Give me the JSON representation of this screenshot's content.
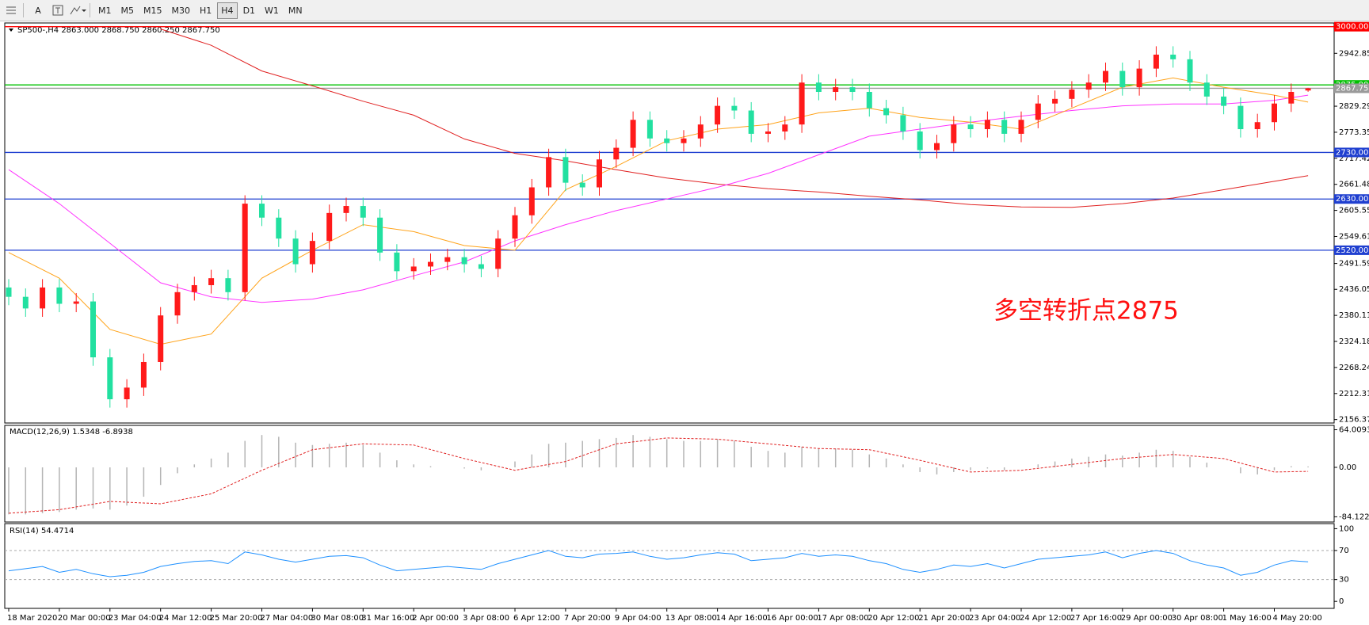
{
  "toolbar": {
    "text_tool": "A",
    "timeframes": [
      "M1",
      "M5",
      "M15",
      "M30",
      "H1",
      "H4",
      "D1",
      "W1",
      "MN"
    ]
  },
  "chart_data": [
    {
      "type": "candlestick",
      "title": "SP500-,H4  2863.000 2868.750 2860.250 2867.750",
      "annotation": "多空转折点2875",
      "categories": [
        "18 Mar 2020",
        null,
        null,
        "20 Mar 00:00",
        null,
        null,
        "23 Mar 04:00",
        null,
        null,
        "24 Mar 12:00",
        null,
        null,
        "25 Mar 20:00",
        null,
        null,
        "27 Mar 04:00",
        null,
        null,
        "30 Mar 08:00",
        null,
        null,
        "31 Mar 16:00",
        null,
        null,
        "2 Apr 00:00",
        null,
        null,
        "3 Apr 08:00",
        null,
        null,
        "6 Apr 12:00",
        null,
        null,
        "7 Apr 20:00",
        null,
        null,
        "9 Apr 04:00",
        null,
        null,
        "13 Apr 08:00",
        null,
        null,
        "14 Apr 16:00",
        null,
        null,
        "16 Apr 00:00",
        null,
        null,
        "17 Apr 08:00",
        null,
        null,
        "20 Apr 12:00",
        null,
        null,
        "21 Apr 20:00",
        null,
        null,
        "23 Apr 04:00",
        null,
        null,
        "24 Apr 12:00",
        null,
        null,
        "27 Apr 16:00",
        null,
        null,
        "29 Apr 00:00",
        null,
        null,
        "30 Apr 08:00",
        null,
        null,
        "1 May 16:00",
        null,
        null,
        "4 May 20:00",
        null,
        null
      ],
      "open": [
        2440,
        2420,
        2395,
        2440,
        2405,
        2410,
        2290,
        2200,
        2225,
        2280,
        2380,
        2430,
        2445,
        2460,
        2430,
        2620,
        2590,
        2545,
        2490,
        2540,
        2600,
        2615,
        2590,
        2515,
        2475,
        2485,
        2495,
        2505,
        2490,
        2480,
        2545,
        2595,
        2655,
        2720,
        2665,
        2655,
        2715,
        2740,
        2800,
        2760,
        2750,
        2760,
        2790,
        2830,
        2820,
        2770,
        2775,
        2790,
        2880,
        2860,
        2870,
        2860,
        2825,
        2810,
        2775,
        2735,
        2750,
        2790,
        2780,
        2800,
        2770,
        2800,
        2835,
        2845,
        2865,
        2880,
        2905,
        2870,
        2910,
        2940,
        2930,
        2880,
        2850,
        2830,
        2780,
        2795,
        2835,
        2863
      ],
      "high": [
        2458,
        2438,
        2458,
        2458,
        2428,
        2428,
        2308,
        2243,
        2298,
        2398,
        2448,
        2463,
        2478,
        2478,
        2638,
        2638,
        2608,
        2563,
        2558,
        2618,
        2633,
        2633,
        2608,
        2533,
        2503,
        2513,
        2523,
        2523,
        2508,
        2563,
        2613,
        2673,
        2738,
        2738,
        2683,
        2733,
        2758,
        2818,
        2818,
        2778,
        2778,
        2808,
        2848,
        2848,
        2838,
        2793,
        2808,
        2898,
        2898,
        2888,
        2888,
        2878,
        2843,
        2828,
        2793,
        2768,
        2808,
        2808,
        2818,
        2818,
        2818,
        2853,
        2863,
        2883,
        2898,
        2923,
        2923,
        2928,
        2958,
        2958,
        2948,
        2898,
        2868,
        2848,
        2813,
        2853,
        2878,
        2868.75
      ],
      "low": [
        2402,
        2377,
        2377,
        2387,
        2387,
        2272,
        2182,
        2182,
        2207,
        2262,
        2362,
        2412,
        2427,
        2412,
        2412,
        2572,
        2527,
        2472,
        2472,
        2522,
        2582,
        2572,
        2497,
        2457,
        2457,
        2467,
        2477,
        2472,
        2462,
        2462,
        2527,
        2577,
        2637,
        2647,
        2637,
        2637,
        2697,
        2722,
        2742,
        2732,
        2732,
        2742,
        2772,
        2802,
        2752,
        2752,
        2757,
        2772,
        2842,
        2842,
        2842,
        2807,
        2792,
        2757,
        2717,
        2717,
        2732,
        2762,
        2762,
        2752,
        2752,
        2782,
        2817,
        2827,
        2847,
        2862,
        2852,
        2852,
        2892,
        2912,
        2862,
        2832,
        2812,
        2762,
        2762,
        2777,
        2817,
        2860.25
      ],
      "close": [
        2420,
        2395,
        2440,
        2405,
        2410,
        2290,
        2200,
        2225,
        2280,
        2380,
        2430,
        2445,
        2460,
        2430,
        2620,
        2590,
        2545,
        2490,
        2540,
        2600,
        2615,
        2590,
        2515,
        2475,
        2485,
        2495,
        2505,
        2490,
        2480,
        2545,
        2595,
        2655,
        2720,
        2665,
        2655,
        2715,
        2740,
        2800,
        2760,
        2750,
        2760,
        2790,
        2830,
        2820,
        2770,
        2775,
        2790,
        2880,
        2860,
        2870,
        2860,
        2825,
        2810,
        2775,
        2735,
        2750,
        2790,
        2780,
        2800,
        2770,
        2800,
        2835,
        2845,
        2865,
        2880,
        2905,
        2870,
        2910,
        2940,
        2930,
        2880,
        2850,
        2830,
        2780,
        2795,
        2835,
        2860,
        2867.75
      ],
      "up_color": "#ff1a1a",
      "down_color": "#22e0a0",
      "ylim": [
        2149,
        3008
      ],
      "yticks": [
        2942.855,
        {
          "value": 2829.29,
          "label": "2829.290"
        },
        2773.355,
        {
          "value": 2717.42,
          "label": "2717.420"
        },
        2661.481,
        2605.555,
        2549.615,
        2491.595,
        {
          "value": 2436.05,
          "label": "2436.050"
        },
        2380.115,
        {
          "value": 2324.18,
          "label": "2324.180"
        },
        2268.245,
        {
          "value": 2212.31,
          "label": "2212.310"
        },
        2156.375
      ],
      "lines": [
        {
          "color": "#e02020",
          "x": [
            9,
            12,
            15,
            18,
            21,
            24,
            27,
            30,
            33,
            36,
            39,
            42,
            45,
            48,
            51,
            54,
            57,
            60,
            63,
            66,
            69,
            72,
            75,
            77
          ],
          "values": [
            2995,
            2960,
            2905,
            2873,
            2840,
            2810,
            2759,
            2728,
            2712,
            2693,
            2675,
            2662,
            2652,
            2645,
            2636,
            2628,
            2618,
            2613,
            2612,
            2620,
            2632,
            2650,
            2668,
            2680
          ]
        },
        {
          "color": "#ff33ff",
          "x": [
            0,
            3,
            6,
            9,
            12,
            15,
            18,
            21,
            24,
            27,
            30,
            33,
            36,
            39,
            42,
            45,
            48,
            51,
            54,
            57,
            60,
            63,
            66,
            69,
            72,
            75,
            77
          ],
          "values": [
            2693,
            2620,
            2535,
            2450,
            2420,
            2408,
            2415,
            2435,
            2465,
            2495,
            2540,
            2575,
            2605,
            2630,
            2655,
            2685,
            2725,
            2765,
            2780,
            2795,
            2808,
            2820,
            2830,
            2834,
            2834,
            2842,
            2853
          ]
        },
        {
          "color": "#ffa31a",
          "x": [
            0,
            3,
            6,
            9,
            12,
            15,
            18,
            21,
            24,
            27,
            30,
            33,
            36,
            39,
            42,
            45,
            48,
            51,
            54,
            57,
            60,
            63,
            66,
            69,
            72,
            75,
            77
          ],
          "values": [
            2515,
            2460,
            2350,
            2318,
            2340,
            2460,
            2520,
            2575,
            2560,
            2530,
            2520,
            2650,
            2700,
            2755,
            2780,
            2790,
            2815,
            2825,
            2805,
            2795,
            2780,
            2825,
            2870,
            2890,
            2870,
            2853,
            2838
          ]
        }
      ],
      "levels": [
        {
          "value": 3000,
          "label": "3000.000",
          "color": "#ff0000"
        },
        {
          "value": 2875,
          "label": "2875.000",
          "color": "#00c000"
        },
        {
          "value": 2867.75,
          "label": "2867.750",
          "color": "#9a9a9a"
        },
        {
          "value": 2730,
          "label": "2730.000",
          "color": "#1f3fd0"
        },
        {
          "value": 2630,
          "label": "2630.000",
          "color": "#1f3fd0"
        },
        {
          "value": 2520,
          "label": "2520.000",
          "color": "#1f3fd0"
        }
      ]
    },
    {
      "type": "macd",
      "title": "MACD(12,26,9) 1.5348 -6.8938",
      "values": [
        -80,
        -80,
        -78,
        -76,
        -72,
        -70,
        -72,
        -65,
        -50,
        -30,
        -10,
        5,
        15,
        25,
        45,
        55,
        52,
        42,
        38,
        40,
        42,
        38,
        25,
        12,
        5,
        2,
        0,
        -2,
        -5,
        0,
        10,
        22,
        40,
        42,
        45,
        48,
        50,
        55,
        52,
        48,
        45,
        45,
        48,
        45,
        35,
        28,
        25,
        35,
        32,
        32,
        30,
        22,
        15,
        5,
        -8,
        -12,
        -8,
        -5,
        -2,
        -5,
        0,
        5,
        10,
        15,
        18,
        22,
        20,
        25,
        30,
        28,
        18,
        8,
        0,
        -10,
        -12,
        -5,
        2,
        1.5348
      ],
      "color": "#b4b4b4",
      "signal": {
        "color": "#e02020",
        "x": [
          0,
          3,
          6,
          9,
          12,
          15,
          18,
          21,
          24,
          27,
          30,
          33,
          36,
          39,
          42,
          45,
          48,
          51,
          54,
          57,
          60,
          63,
          66,
          69,
          72,
          75,
          77
        ],
        "values": [
          -78,
          -72,
          -58,
          -62,
          -45,
          -5,
          30,
          40,
          38,
          15,
          -5,
          10,
          40,
          50,
          48,
          40,
          32,
          30,
          12,
          -8,
          -5,
          5,
          15,
          22,
          15,
          -8,
          -6.8938
        ]
      },
      "ylim": [
        -93,
        71.4
      ],
      "yticks": [
        64.0093,
        {
          "value": 0,
          "label": "0.00"
        },
        -84.122
      ]
    },
    {
      "type": "line",
      "title": "RSI(14) 54.4714",
      "values": [
        42,
        45,
        48,
        40,
        44,
        38,
        34,
        36,
        40,
        48,
        52,
        55,
        56,
        52,
        68,
        64,
        58,
        54,
        58,
        62,
        63,
        60,
        50,
        42,
        44,
        46,
        48,
        46,
        44,
        52,
        58,
        64,
        70,
        62,
        60,
        65,
        66,
        68,
        62,
        58,
        60,
        64,
        67,
        65,
        56,
        58,
        60,
        66,
        62,
        64,
        62,
        56,
        52,
        44,
        40,
        44,
        50,
        48,
        52,
        46,
        52,
        58,
        60,
        62,
        64,
        68,
        60,
        66,
        70,
        66,
        56,
        50,
        46,
        36,
        40,
        50,
        56,
        54.4714
      ],
      "color": "#1e90ff",
      "ylim": [
        -9.6,
        107
      ],
      "yticks": [
        100,
        70,
        30,
        0
      ],
      "dashed_levels": [
        70,
        30
      ]
    }
  ]
}
